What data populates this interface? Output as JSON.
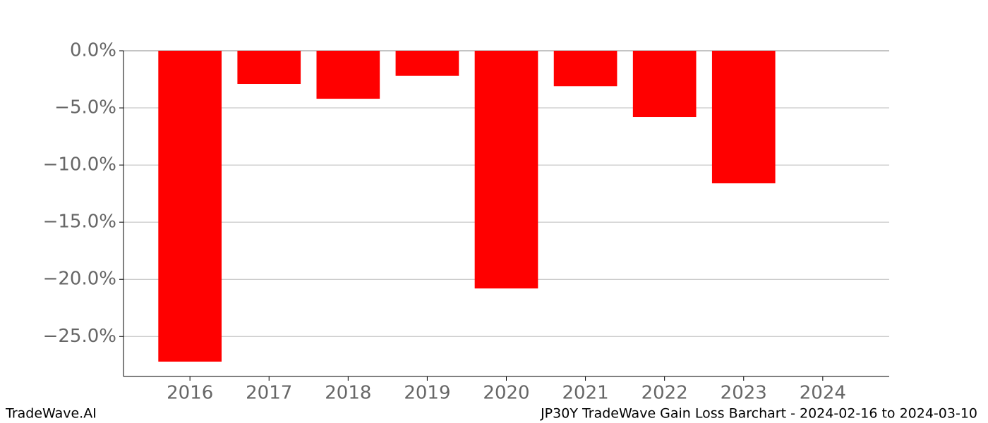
{
  "chart_data": {
    "type": "bar",
    "title": "JP30Y TradeWave Gain Loss Barchart - 2024-02-16 to 2024-03-10",
    "watermark": "TradeWave.AI",
    "categories": [
      "2016",
      "2017",
      "2018",
      "2019",
      "2020",
      "2021",
      "2022",
      "2023",
      "2024"
    ],
    "values": [
      -27.2,
      -2.9,
      -4.2,
      -2.2,
      -20.8,
      -3.1,
      -5.8,
      -11.6,
      null
    ],
    "color": "#ff0000",
    "ylim": [
      -28.5,
      0
    ],
    "yticks": [
      {
        "value": 0,
        "label": "0.0%"
      },
      {
        "value": -5,
        "label": "−5.0%"
      },
      {
        "value": -10,
        "label": "−10.0%"
      },
      {
        "value": -15,
        "label": "−15.0%"
      },
      {
        "value": -20,
        "label": "−20.0%"
      },
      {
        "value": -25,
        "label": "−25.0%"
      }
    ],
    "grid": true
  }
}
